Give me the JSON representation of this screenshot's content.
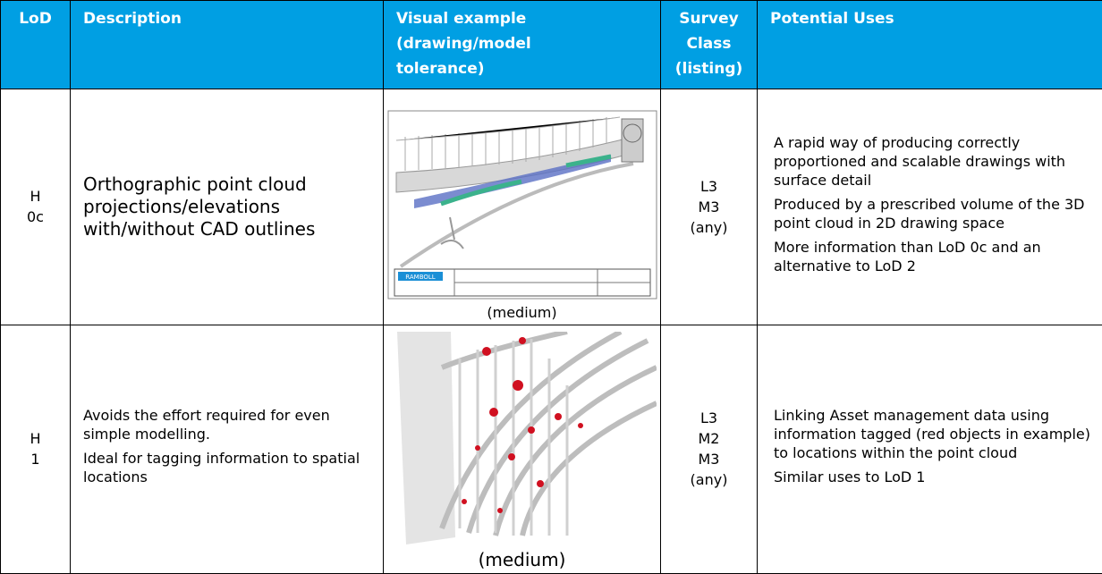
{
  "table": {
    "headers": [
      [
        "LoD"
      ],
      [
        "Description"
      ],
      [
        "Visual example",
        "(drawing/model",
        "tolerance)"
      ],
      [
        "Survey",
        "Class",
        "(listing)"
      ],
      [
        "Potential Uses"
      ]
    ],
    "rows": [
      {
        "lod": [
          "H",
          "0c"
        ],
        "description": [
          "Orthographic point cloud projections/elevations with/without CAD outlines"
        ],
        "image_logo": "RAMBOLL",
        "caption": "(medium)",
        "survey": [
          "L3",
          "M3",
          "(any)"
        ],
        "uses": [
          "A rapid way of producing correctly proportioned and scalable drawings with surface detail",
          "Produced by a prescribed volume of the 3D point cloud in 2D drawing space",
          "More information than LoD 0c and an alternative to LoD 2"
        ]
      },
      {
        "lod": [
          "H",
          "1"
        ],
        "description": [
          "Avoids the effort required for even simple modelling.",
          "Ideal for tagging information to spatial locations"
        ],
        "caption": "(medium)",
        "survey": [
          "L3",
          "M2",
          "M3",
          "(any)"
        ],
        "uses": [
          "Linking Asset management data using information tagged (red objects in example) to locations within the point cloud",
          "Similar uses to LoD 1"
        ]
      }
    ]
  }
}
